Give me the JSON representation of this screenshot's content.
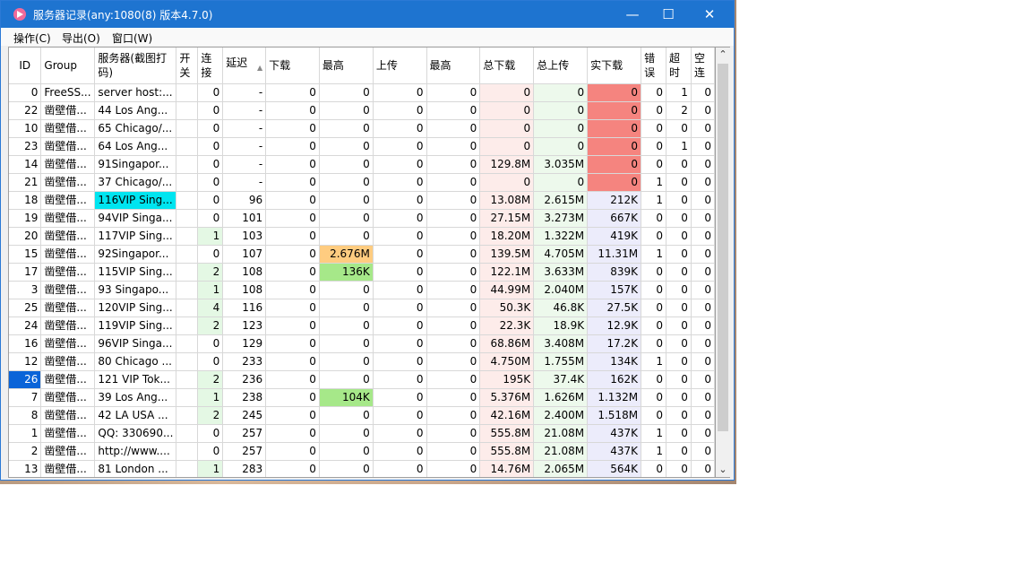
{
  "window": {
    "title": "服务器记录(any:1080(8) 版本4.7.0)",
    "minimize": "—",
    "maximize": "☐",
    "close": "✕"
  },
  "menu": [
    "操作(C)",
    "导出(O)",
    "窗口(W)"
  ],
  "columns": [
    {
      "label": "ID",
      "align": "center"
    },
    {
      "label": "Group",
      "align": "left"
    },
    {
      "label": "服务器(截图打码)",
      "align": "left"
    },
    {
      "label": "开关",
      "align": "left"
    },
    {
      "label": "连接",
      "align": "left"
    },
    {
      "label": "延迟",
      "align": "left",
      "sorted": true
    },
    {
      "label": "下载",
      "align": "left"
    },
    {
      "label": "最高",
      "align": "left"
    },
    {
      "label": "上传",
      "align": "left"
    },
    {
      "label": "最高",
      "align": "left"
    },
    {
      "label": "总下载",
      "align": "left"
    },
    {
      "label": "总上传",
      "align": "left"
    },
    {
      "label": "实下载",
      "align": "left"
    },
    {
      "label": "错误",
      "align": "left"
    },
    {
      "label": "超时",
      "align": "left"
    },
    {
      "label": "空连",
      "align": "left"
    }
  ],
  "colors": {
    "selected_id": "#0a64d8",
    "highlight_server": "#00e5f0",
    "totaldown_bg": "#fdecea",
    "totalup_bg": "#edf9ec",
    "realdown_bg": "#ececfb",
    "realdown_zero": "#f5847f",
    "conn_green": "#e4f8e4",
    "max_orange": "#ffcc80",
    "max_green": "#a6e889"
  },
  "rows": [
    {
      "id": "0",
      "group": "FreeSS...",
      "server": "server host:...",
      "conn": "0",
      "delay": "-",
      "down": "0",
      "max1": "0",
      "up": "0",
      "max2": "0",
      "totaldown": "0",
      "totalup": "0",
      "realdown": "0",
      "err": "0",
      "timeout": "1",
      "empty": "0"
    },
    {
      "id": "22",
      "group": "凿壁借...",
      "server": "44 Los Ang...",
      "conn": "0",
      "delay": "-",
      "down": "0",
      "max1": "0",
      "up": "0",
      "max2": "0",
      "totaldown": "0",
      "totalup": "0",
      "realdown": "0",
      "err": "0",
      "timeout": "2",
      "empty": "0"
    },
    {
      "id": "10",
      "group": "凿壁借...",
      "server": "65 Chicago/...",
      "conn": "0",
      "delay": "-",
      "down": "0",
      "max1": "0",
      "up": "0",
      "max2": "0",
      "totaldown": "0",
      "totalup": "0",
      "realdown": "0",
      "err": "0",
      "timeout": "0",
      "empty": "0"
    },
    {
      "id": "23",
      "group": "凿壁借...",
      "server": "64 Los Ang...",
      "conn": "0",
      "delay": "-",
      "down": "0",
      "max1": "0",
      "up": "0",
      "max2": "0",
      "totaldown": "0",
      "totalup": "0",
      "realdown": "0",
      "err": "0",
      "timeout": "1",
      "empty": "0"
    },
    {
      "id": "14",
      "group": "凿壁借...",
      "server": "91Singapor...",
      "conn": "0",
      "delay": "-",
      "down": "0",
      "max1": "0",
      "up": "0",
      "max2": "0",
      "totaldown": "129.8M",
      "totalup": "3.035M",
      "realdown": "0",
      "err": "0",
      "timeout": "0",
      "empty": "0"
    },
    {
      "id": "21",
      "group": "凿壁借...",
      "server": "37 Chicago/...",
      "conn": "0",
      "delay": "-",
      "down": "0",
      "max1": "0",
      "up": "0",
      "max2": "0",
      "totaldown": "0",
      "totalup": "0",
      "realdown": "0",
      "err": "1",
      "timeout": "0",
      "empty": "0"
    },
    {
      "id": "18",
      "group": "凿壁借...",
      "server": "116VIP Sing...",
      "conn": "0",
      "delay": "96",
      "down": "0",
      "max1": "0",
      "up": "0",
      "max2": "0",
      "totaldown": "13.08M",
      "totalup": "2.615M",
      "realdown": "212K",
      "err": "1",
      "timeout": "0",
      "empty": "0"
    },
    {
      "id": "19",
      "group": "凿壁借...",
      "server": "94VIP Singa...",
      "conn": "0",
      "delay": "101",
      "down": "0",
      "max1": "0",
      "up": "0",
      "max2": "0",
      "totaldown": "27.15M",
      "totalup": "3.273M",
      "realdown": "667K",
      "err": "0",
      "timeout": "0",
      "empty": "0"
    },
    {
      "id": "20",
      "group": "凿壁借...",
      "server": "117VIP Sing...",
      "conn": "1",
      "delay": "103",
      "down": "0",
      "max1": "0",
      "up": "0",
      "max2": "0",
      "totaldown": "18.20M",
      "totalup": "1.322M",
      "realdown": "419K",
      "err": "0",
      "timeout": "0",
      "empty": "0"
    },
    {
      "id": "15",
      "group": "凿壁借...",
      "server": "92Singapor...",
      "conn": "0",
      "delay": "107",
      "down": "0",
      "max1": "2.676M",
      "up": "0",
      "max2": "0",
      "totaldown": "139.5M",
      "totalup": "4.705M",
      "realdown": "11.31M",
      "err": "1",
      "timeout": "0",
      "empty": "0"
    },
    {
      "id": "17",
      "group": "凿壁借...",
      "server": "115VIP Sing...",
      "conn": "2",
      "delay": "108",
      "down": "0",
      "max1": "136K",
      "up": "0",
      "max2": "0",
      "totaldown": "122.1M",
      "totalup": "3.633M",
      "realdown": "839K",
      "err": "0",
      "timeout": "0",
      "empty": "0"
    },
    {
      "id": "3",
      "group": "凿壁借...",
      "server": "93 Singapo...",
      "conn": "1",
      "delay": "108",
      "down": "0",
      "max1": "0",
      "up": "0",
      "max2": "0",
      "totaldown": "44.99M",
      "totalup": "2.040M",
      "realdown": "157K",
      "err": "0",
      "timeout": "0",
      "empty": "0"
    },
    {
      "id": "25",
      "group": "凿壁借...",
      "server": "120VIP Sing...",
      "conn": "4",
      "delay": "116",
      "down": "0",
      "max1": "0",
      "up": "0",
      "max2": "0",
      "totaldown": "50.3K",
      "totalup": "46.8K",
      "realdown": "27.5K",
      "err": "0",
      "timeout": "0",
      "empty": "0"
    },
    {
      "id": "24",
      "group": "凿壁借...",
      "server": "119VIP Sing...",
      "conn": "2",
      "delay": "123",
      "down": "0",
      "max1": "0",
      "up": "0",
      "max2": "0",
      "totaldown": "22.3K",
      "totalup": "18.9K",
      "realdown": "12.9K",
      "err": "0",
      "timeout": "0",
      "empty": "0"
    },
    {
      "id": "16",
      "group": "凿壁借...",
      "server": "96VIP Singa...",
      "conn": "0",
      "delay": "129",
      "down": "0",
      "max1": "0",
      "up": "0",
      "max2": "0",
      "totaldown": "68.86M",
      "totalup": "3.408M",
      "realdown": "17.2K",
      "err": "0",
      "timeout": "0",
      "empty": "0"
    },
    {
      "id": "12",
      "group": "凿壁借...",
      "server": "80 Chicago ...",
      "conn": "0",
      "delay": "233",
      "down": "0",
      "max1": "0",
      "up": "0",
      "max2": "0",
      "totaldown": "4.750M",
      "totalup": "1.755M",
      "realdown": "134K",
      "err": "1",
      "timeout": "0",
      "empty": "0"
    },
    {
      "id": "26",
      "group": "凿壁借...",
      "server": "121 VIP Tok...",
      "conn": "2",
      "delay": "236",
      "down": "0",
      "max1": "0",
      "up": "0",
      "max2": "0",
      "totaldown": "195K",
      "totalup": "37.4K",
      "realdown": "162K",
      "err": "0",
      "timeout": "0",
      "empty": "0"
    },
    {
      "id": "7",
      "group": "凿壁借...",
      "server": "39 Los Ang...",
      "conn": "1",
      "delay": "238",
      "down": "0",
      "max1": "104K",
      "up": "0",
      "max2": "0",
      "totaldown": "5.376M",
      "totalup": "1.626M",
      "realdown": "1.132M",
      "err": "0",
      "timeout": "0",
      "empty": "0"
    },
    {
      "id": "8",
      "group": "凿壁借...",
      "server": "42 LA USA ...",
      "conn": "2",
      "delay": "245",
      "down": "0",
      "max1": "0",
      "up": "0",
      "max2": "0",
      "totaldown": "42.16M",
      "totalup": "2.400M",
      "realdown": "1.518M",
      "err": "0",
      "timeout": "0",
      "empty": "0"
    },
    {
      "id": "1",
      "group": "凿壁借...",
      "server": "QQ: 330690...",
      "conn": "0",
      "delay": "257",
      "down": "0",
      "max1": "0",
      "up": "0",
      "max2": "0",
      "totaldown": "555.8M",
      "totalup": "21.08M",
      "realdown": "437K",
      "err": "1",
      "timeout": "0",
      "empty": "0"
    },
    {
      "id": "2",
      "group": "凿壁借...",
      "server": "http://www....",
      "conn": "0",
      "delay": "257",
      "down": "0",
      "max1": "0",
      "up": "0",
      "max2": "0",
      "totaldown": "555.8M",
      "totalup": "21.08M",
      "realdown": "437K",
      "err": "1",
      "timeout": "0",
      "empty": "0"
    },
    {
      "id": "13",
      "group": "凿壁借...",
      "server": "81 London ...",
      "conn": "1",
      "delay": "283",
      "down": "0",
      "max1": "0",
      "up": "0",
      "max2": "0",
      "totaldown": "14.76M",
      "totalup": "2.065M",
      "realdown": "564K",
      "err": "0",
      "timeout": "0",
      "empty": "0"
    }
  ],
  "selected_row_id": "26",
  "highlighted_server_id": "18"
}
